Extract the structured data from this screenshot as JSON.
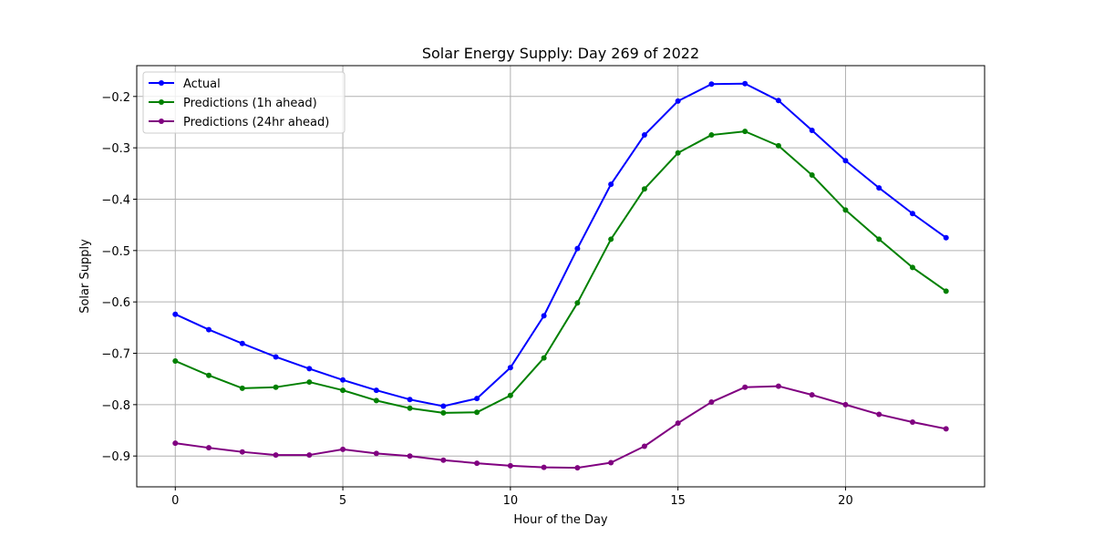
{
  "chart_data": {
    "type": "line",
    "title": "Solar Energy Supply: Day 269 of 2022",
    "xlabel": "Hour of the Day",
    "ylabel": "Solar Supply",
    "xlim": [
      -1.15,
      24.15
    ],
    "ylim": [
      -0.96,
      -0.14
    ],
    "xticks": [
      0,
      5,
      10,
      15,
      20
    ],
    "yticks": [
      -0.9,
      -0.8,
      -0.7,
      -0.6,
      -0.5,
      -0.4,
      -0.3,
      -0.2
    ],
    "ytick_labels": [
      "−0.9",
      "−0.8",
      "−0.7",
      "−0.6",
      "−0.5",
      "−0.4",
      "−0.3",
      "−0.2"
    ],
    "grid": true,
    "legend_position": "top-left",
    "x": [
      0,
      1,
      2,
      3,
      4,
      5,
      6,
      7,
      8,
      9,
      10,
      11,
      12,
      13,
      14,
      15,
      16,
      17,
      18,
      19,
      20,
      21,
      22,
      23
    ],
    "series": [
      {
        "name": "Actual",
        "color": "#0000ff",
        "values": [
          -0.624,
          -0.654,
          -0.681,
          -0.707,
          -0.73,
          -0.752,
          -0.772,
          -0.79,
          -0.803,
          -0.788,
          -0.728,
          -0.627,
          -0.496,
          -0.371,
          -0.275,
          -0.209,
          -0.176,
          -0.175,
          -0.208,
          -0.266,
          -0.325,
          -0.378,
          -0.428,
          -0.475
        ]
      },
      {
        "name": "Predictions (1h ahead)",
        "color": "#008000",
        "values": [
          -0.715,
          -0.743,
          -0.768,
          -0.766,
          -0.756,
          -0.772,
          -0.792,
          -0.807,
          -0.816,
          -0.815,
          -0.782,
          -0.709,
          -0.602,
          -0.478,
          -0.38,
          -0.31,
          -0.275,
          -0.268,
          -0.296,
          -0.353,
          -0.421,
          -0.478,
          -0.533,
          -0.579
        ]
      },
      {
        "name": "Predictions (24hr ahead)",
        "color": "#800080",
        "values": [
          -0.875,
          -0.884,
          -0.892,
          -0.898,
          -0.898,
          -0.887,
          -0.895,
          -0.9,
          -0.908,
          -0.914,
          -0.919,
          -0.922,
          -0.923,
          -0.913,
          -0.881,
          -0.836,
          -0.795,
          -0.766,
          -0.764,
          -0.781,
          -0.8,
          -0.819,
          -0.834,
          -0.847
        ]
      }
    ]
  }
}
